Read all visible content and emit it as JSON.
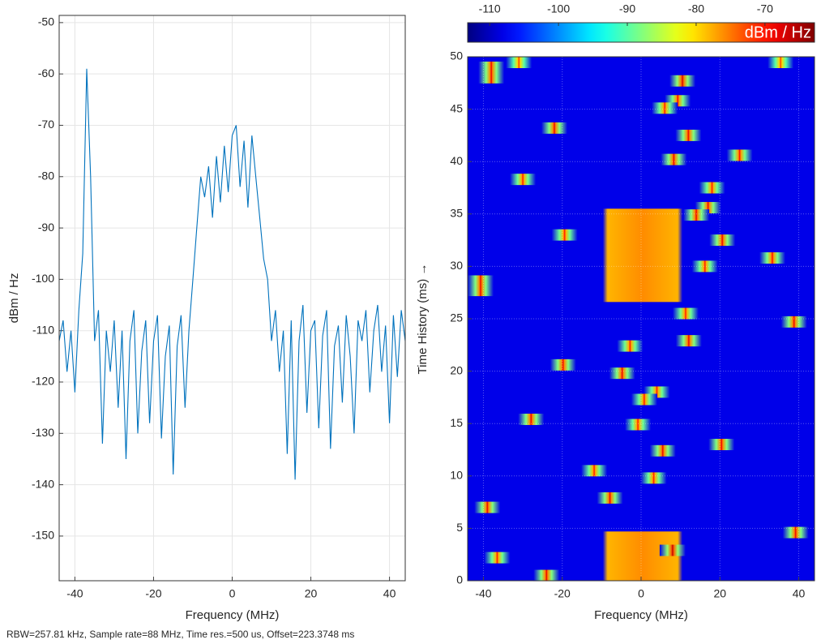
{
  "chart_data": [
    {
      "type": "line",
      "xlabel": "Frequency (MHz)",
      "ylabel": "dBm / Hz",
      "color": "#0072bd",
      "grid": true,
      "xlim": [
        -44,
        44
      ],
      "ylim": [
        -158.7,
        -48.6
      ],
      "xticks": [
        -40,
        -20,
        0,
        20,
        40
      ],
      "yticks": [
        -150,
        -140,
        -130,
        -120,
        -110,
        -100,
        -90,
        -80,
        -70,
        -60,
        -50
      ],
      "x": [
        -44,
        -43,
        -42,
        -41,
        -40,
        -39,
        -38,
        -37,
        -36,
        -35,
        -34,
        -33,
        -32,
        -31,
        -30,
        -29,
        -28,
        -27,
        -26,
        -25,
        -24,
        -23,
        -22,
        -21,
        -20,
        -19,
        -18,
        -17,
        -16,
        -15,
        -14,
        -13,
        -12,
        -11,
        -10,
        -9,
        -8,
        -7,
        -6,
        -5,
        -4,
        -3,
        -2,
        -1,
        0,
        1,
        2,
        3,
        4,
        5,
        6,
        7,
        8,
        9,
        10,
        11,
        12,
        13,
        14,
        15,
        16,
        17,
        18,
        19,
        20,
        21,
        22,
        23,
        24,
        25,
        26,
        27,
        28,
        29,
        30,
        31,
        32,
        33,
        34,
        35,
        36,
        37,
        38,
        39,
        40,
        41,
        42,
        43,
        44
      ],
      "values": [
        -112,
        -108,
        -118,
        -110,
        -122,
        -106,
        -95,
        -59,
        -80,
        -112,
        -106,
        -132,
        -110,
        -118,
        -108,
        -125,
        -110,
        -135,
        -112,
        -106,
        -130,
        -114,
        -108,
        -128,
        -112,
        -107,
        -131,
        -115,
        -109,
        -138,
        -113,
        -107,
        -125,
        -110,
        -100,
        -90,
        -80,
        -84,
        -78,
        -88,
        -76,
        -85,
        -74,
        -83,
        -72,
        -70,
        -82,
        -73,
        -86,
        -72,
        -80,
        -88,
        -96,
        -100,
        -112,
        -106,
        -118,
        -110,
        -134,
        -108,
        -139,
        -112,
        -105,
        -126,
        -110,
        -108,
        -129,
        -111,
        -106,
        -133,
        -113,
        -109,
        -124,
        -107,
        -115,
        -130,
        -108,
        -112,
        -106,
        -122,
        -110,
        -105,
        -118,
        -109,
        -128,
        -107,
        -119,
        -106,
        -112
      ]
    },
    {
      "type": "spectrogram",
      "xlabel": "Frequency (MHz)",
      "ylabel": "Time History (ms) →",
      "colorbar_label": "dBm / Hz",
      "grid": true,
      "xlim": [
        -44,
        44
      ],
      "ylim": [
        0,
        50
      ],
      "xticks": [
        -40,
        -20,
        0,
        20,
        40
      ],
      "yticks": [
        0,
        5,
        10,
        15,
        20,
        25,
        30,
        35,
        40,
        45,
        50
      ],
      "clim": [
        -113.2,
        -62.8
      ],
      "cticks": [
        -110,
        -100,
        -90,
        -80,
        -70
      ],
      "floor": -108,
      "bursts": {
        "x": [
          -38,
          -38,
          10.5,
          9.3,
          6,
          -22,
          12,
          25,
          8.3,
          -30,
          18,
          17,
          14,
          -19.4,
          20.6,
          33.3,
          16.2,
          -41,
          -41.6,
          11.3,
          38.8,
          12.1,
          -2.8,
          -19.8,
          -4.8,
          4,
          0.8,
          -27.9,
          -0.8,
          20.4,
          5.5,
          -11.9,
          3.2,
          -7.9,
          -39,
          39.2,
          -36.5,
          -24,
          -31,
          35.4,
          8
        ],
        "t": [
          49,
          48,
          47.7,
          45.8,
          45.1,
          43.2,
          42.5,
          40.6,
          40.2,
          38.3,
          37.5,
          35.6,
          34.9,
          33,
          32.5,
          30.8,
          30,
          28.6,
          27.7,
          25.5,
          24.7,
          22.9,
          22.4,
          20.6,
          19.8,
          18,
          17.3,
          15.4,
          14.9,
          13,
          12.4,
          10.5,
          9.8,
          7.9,
          7,
          4.6,
          2.2,
          0.5,
          49.9,
          49.9,
          2.9
        ],
        "values": [
          -68,
          -68,
          -67,
          -69,
          -70,
          -68,
          -68,
          -69,
          -68,
          -70,
          -70,
          -68,
          -68,
          -70,
          -68,
          -69,
          -70,
          -68,
          -68,
          -70,
          -68,
          -68,
          -70,
          -68,
          -68,
          -70,
          -70,
          -68,
          -70,
          -68,
          -68,
          -70,
          -70,
          -68,
          -68,
          -68,
          -70,
          -68,
          -72,
          -72,
          -66
        ]
      },
      "blocks": {
        "x0": [
          -9.7,
          -9.7
        ],
        "x1": [
          10.5,
          10.5
        ],
        "t0": [
          26.6,
          0
        ],
        "t1": [
          35.5,
          4.7
        ],
        "values": [
          -78,
          -78
        ]
      }
    }
  ],
  "footer": "RBW=257.81 kHz, Sample rate=88 MHz, Time res.=500 us, Offset=223.3748 ms"
}
